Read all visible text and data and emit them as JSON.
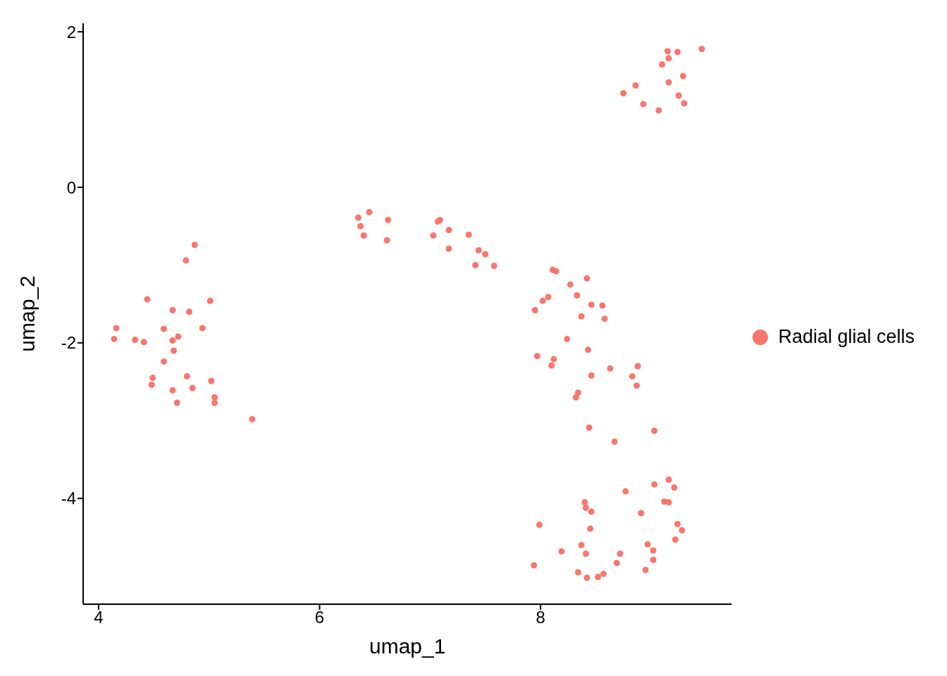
{
  "chart_data": {
    "type": "scatter",
    "xlabel": "umap_1",
    "ylabel": "umap_2",
    "xlim": [
      3.86,
      9.73
    ],
    "ylim": [
      -5.36,
      2.11
    ],
    "xticks": [
      4,
      6,
      8
    ],
    "yticks": [
      -4,
      -2,
      0,
      2
    ],
    "grid": false,
    "legend": "right",
    "marker": "circle",
    "x": [
      9.15,
      9.24,
      9.46,
      9.16,
      9.1,
      9.29,
      9.16,
      8.86,
      8.75,
      9.25,
      8.93,
      9.3,
      9.07,
      6.35,
      6.45,
      6.62,
      6.37,
      6.4,
      6.61,
      7.09,
      7.07,
      7.17,
      7.03,
      7.35,
      7.17,
      7.44,
      7.5,
      7.41,
      7.58,
      4.87,
      4.79,
      4.44,
      5.01,
      4.67,
      4.82,
      4.16,
      4.94,
      4.59,
      4.14,
      4.33,
      4.41,
      4.72,
      4.67,
      4.68,
      4.59,
      4.8,
      4.49,
      5.02,
      4.48,
      4.67,
      4.85,
      5.05,
      4.71,
      5.05,
      5.39,
      8.11,
      8.14,
      8.42,
      8.27,
      8.33,
      8.07,
      8.02,
      8.46,
      8.56,
      7.95,
      8.37,
      8.58,
      8.24,
      8.43,
      7.97,
      8.12,
      8.1,
      8.63,
      8.46,
      8.83,
      8.88,
      8.87,
      8.34,
      8.32,
      8.44,
      8.67,
      9.03,
      9.16,
      9.03,
      9.21,
      8.77,
      9.12,
      9.16,
      8.4,
      8.41,
      8.46,
      8.91,
      9.24,
      7.99,
      9.28,
      8.45,
      9.22,
      8.97,
      8.37,
      9.02,
      8.19,
      8.41,
      8.72,
      9.02,
      7.94,
      8.69,
      8.95,
      8.34,
      8.57,
      8.42,
      8.52
    ],
    "series": [
      {
        "name": "Radial glial cells",
        "color": "#f8766d",
        "values": [
          1.75,
          1.74,
          1.78,
          1.66,
          1.58,
          1.43,
          1.35,
          1.31,
          1.21,
          1.18,
          1.07,
          1.08,
          0.99,
          -0.39,
          -0.32,
          -0.42,
          -0.5,
          -0.62,
          -0.68,
          -0.42,
          -0.44,
          -0.55,
          -0.62,
          -0.61,
          -0.79,
          -0.81,
          -0.86,
          -1.0,
          -1.01,
          -0.74,
          -0.94,
          -1.44,
          -1.46,
          -1.58,
          -1.6,
          -1.81,
          -1.81,
          -1.82,
          -1.95,
          -1.96,
          -1.99,
          -1.92,
          -1.97,
          -2.1,
          -2.24,
          -2.43,
          -2.45,
          -2.49,
          -2.54,
          -2.61,
          -2.58,
          -2.7,
          -2.77,
          -2.77,
          -2.98,
          -1.06,
          -1.08,
          -1.17,
          -1.25,
          -1.39,
          -1.41,
          -1.46,
          -1.51,
          -1.52,
          -1.58,
          -1.66,
          -1.69,
          -1.95,
          -2.09,
          -2.17,
          -2.21,
          -2.29,
          -2.33,
          -2.42,
          -2.43,
          -2.3,
          -2.55,
          -2.64,
          -2.7,
          -3.09,
          -3.27,
          -3.13,
          -3.76,
          -3.82,
          -3.86,
          -3.91,
          -4.04,
          -4.05,
          -4.05,
          -4.12,
          -4.17,
          -4.19,
          -4.33,
          -4.34,
          -4.41,
          -4.39,
          -4.53,
          -4.59,
          -4.6,
          -4.67,
          -4.68,
          -4.71,
          -4.71,
          -4.79,
          -4.86,
          -4.83,
          -4.92,
          -4.95,
          -4.97,
          -5.02,
          -5.01
        ]
      }
    ]
  }
}
